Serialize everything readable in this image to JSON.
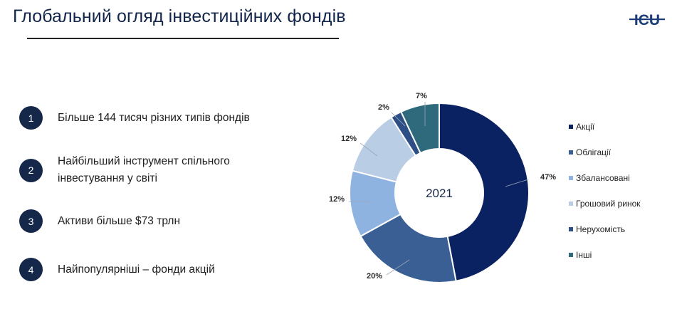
{
  "slide": {
    "title": "Глобальний огляд інвестиційних фондів",
    "logo_text": "ICU"
  },
  "key_points": [
    {
      "number": "1",
      "lines": [
        "Більше 144 тисяч різних типів фондів"
      ]
    },
    {
      "number": "2",
      "lines": [
        "Найбільший інструмент спільного",
        "інвестування у світі"
      ]
    },
    {
      "number": "3",
      "lines": [
        "Активи більше $73 трлн"
      ]
    },
    {
      "number": "4",
      "lines": [
        "Найпопулярніші – фонди акцій"
      ]
    }
  ],
  "colors": {
    "title": "#12264b",
    "badge": "#16284a"
  },
  "chart_data": {
    "type": "pie",
    "variant": "donut",
    "center_label": "2021",
    "legend_placement": "right",
    "categories": [
      "Акції",
      "Облігації",
      "Збалансовані",
      "Грошовий ринок",
      "Нерухомість",
      "Інші"
    ],
    "values": [
      47,
      20,
      12,
      12,
      2,
      7
    ],
    "data_labels": [
      "47%",
      "20%",
      "12%",
      "12%",
      "2%",
      "7%"
    ],
    "colors": [
      "#0b2262",
      "#3a5f94",
      "#8fb3e1",
      "#b9cde5",
      "#2e4f85",
      "#2f6a7c"
    ]
  }
}
